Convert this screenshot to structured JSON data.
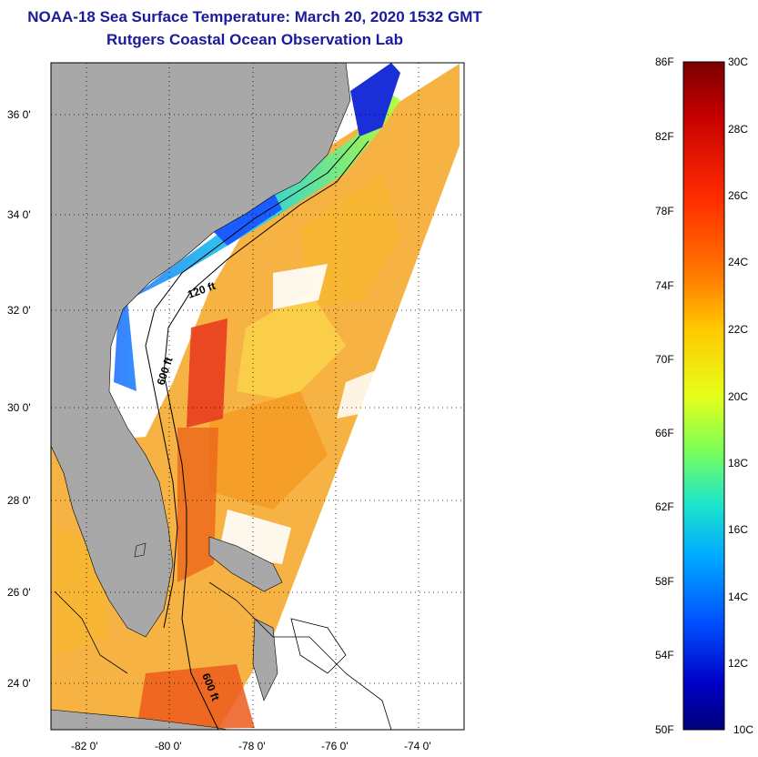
{
  "title": "NOAA-18 Sea Surface Temperature:  March 20, 2020 1532 GMT",
  "subtitle": "Rutgers Coastal Ocean Observation Lab",
  "lat_labels": [
    "36 0'",
    "34 0'",
    "32 0'",
    "30 0'",
    "28 0'",
    "26 0'",
    "24 0'"
  ],
  "lon_labels": [
    "-82 0'",
    "-80 0'",
    "-78 0'",
    "-76 0'",
    "-74 0'"
  ],
  "contour_labels": [
    "120 ft",
    "600 ft",
    "600 ft"
  ],
  "colorbar": {
    "f_labels": [
      "86F",
      "82F",
      "78F",
      "74F",
      "70F",
      "66F",
      "62F",
      "58F",
      "54F",
      "50F"
    ],
    "c_labels": [
      "30C",
      "28C",
      "26C",
      "24C",
      "22C",
      "20C",
      "18C",
      "16C",
      "14C",
      "12C",
      "10C"
    ],
    "colors": [
      "#7a0000",
      "#c40000",
      "#ff2a00",
      "#ff7a00",
      "#ffc800",
      "#e6ff1a",
      "#7dff55",
      "#1ee6c8",
      "#00aaff",
      "#0050ff",
      "#0000c8",
      "#00007a"
    ]
  },
  "colors": {
    "land": "#a8a8a8",
    "title": "#1a1a9c"
  }
}
